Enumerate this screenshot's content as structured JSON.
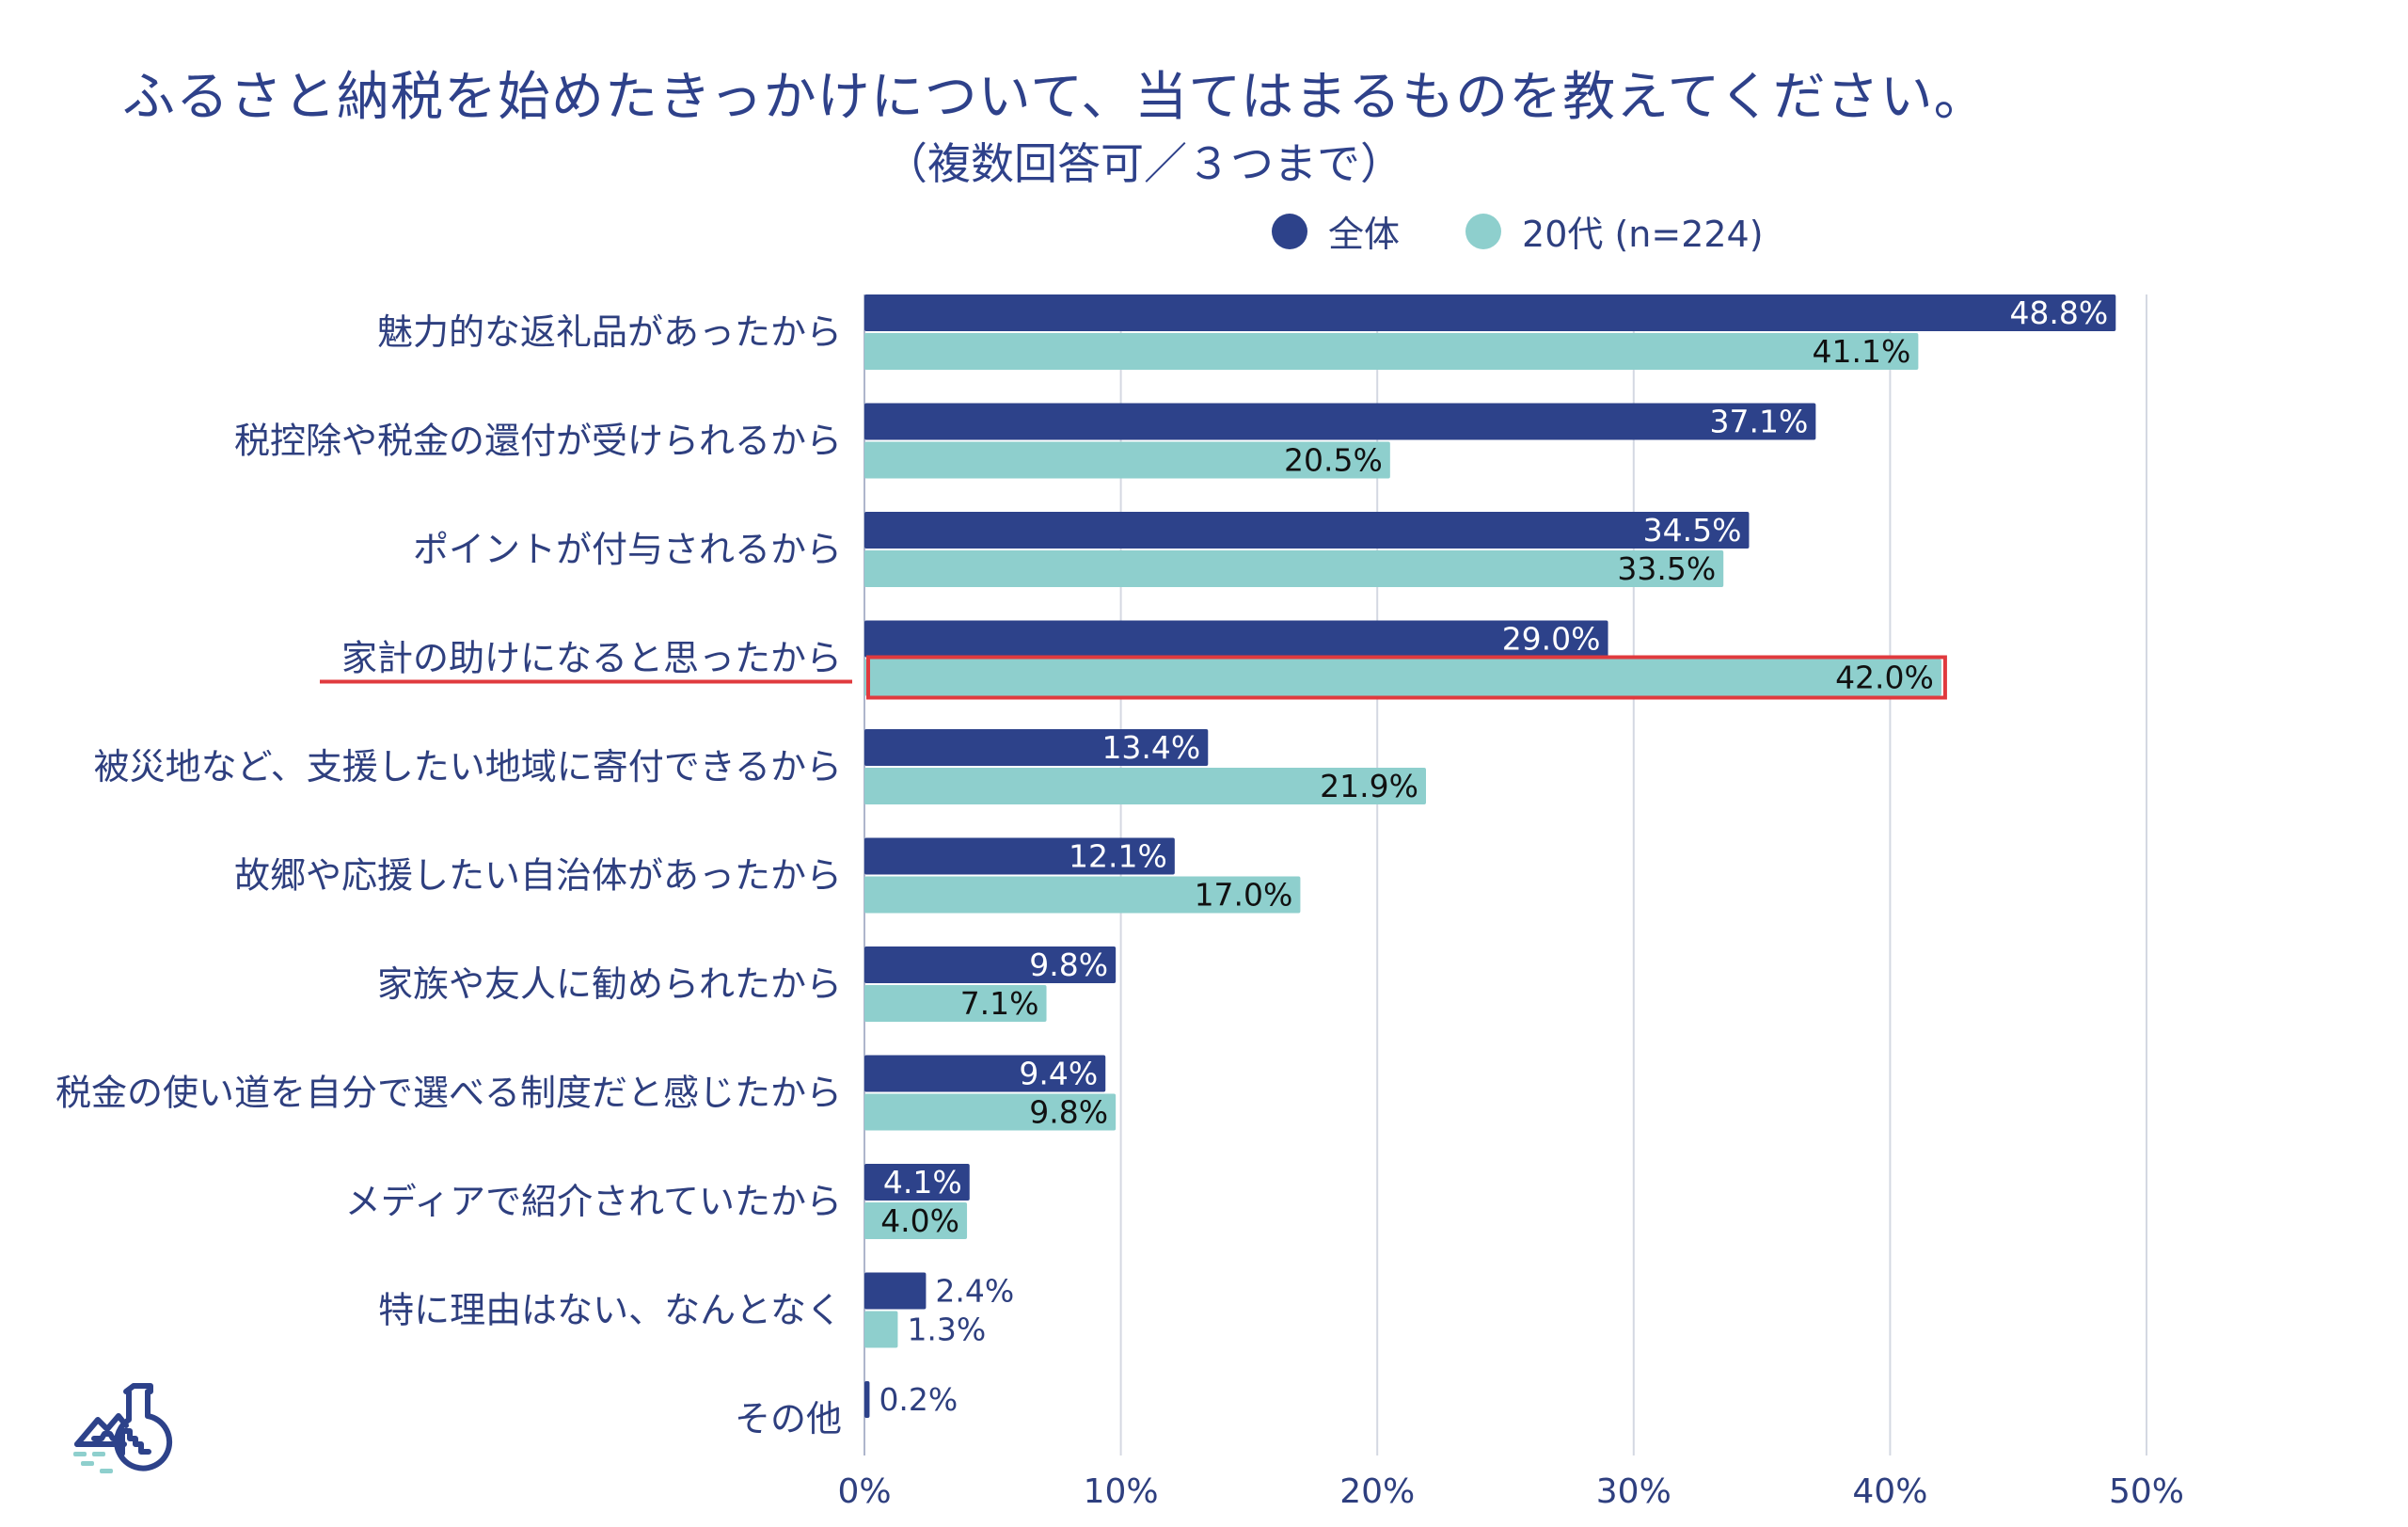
{
  "title": "ふるさと納税を始めたきっかけについて、当てはまるものを教えてください。",
  "subtitle": "（複数回答可／３つまで）",
  "legend": [
    {
      "label": "全体",
      "color": "#2d428a"
    },
    {
      "label": "20代 (n=224)",
      "color": "#8ecfcd"
    }
  ],
  "colors": {
    "highlight": "#e03a3e",
    "grid": "#d4d8e2",
    "axis_text": "#2e3f7f",
    "dark_value_text": "#ffffff",
    "light_value_text": "#111111"
  },
  "highlight_index": 3,
  "chart_data": {
    "type": "bar",
    "orientation": "horizontal",
    "title": "ふるさと納税を始めたきっかけについて、当てはまるものを教えてください。",
    "subtitle": "（複数回答可／３つまで）",
    "categories": [
      "魅力的な返礼品があったから",
      "税控除や税金の還付が受けられるから",
      "ポイントが付与されるから",
      "家計の助けになると思ったから",
      "被災地など、支援したい地域に寄付できるから",
      "故郷や応援したい自治体があったから",
      "家族や友人に勧められたから",
      "税金の使い道を自分で選べる制度だと感じたから",
      "メディアで紹介されていたから",
      "特に理由はない、なんとなく",
      "その他"
    ],
    "series": [
      {
        "name": "全体",
        "color": "#2d428a",
        "values": [
          48.8,
          37.1,
          34.5,
          29.0,
          13.4,
          12.1,
          9.8,
          9.4,
          4.1,
          2.4,
          0.2
        ],
        "labels": [
          "48.8%",
          "37.1%",
          "34.5%",
          "29.0%",
          "13.4%",
          "12.1%",
          "9.8%",
          "9.4%",
          "4.1%",
          "2.4%",
          "0.2%"
        ]
      },
      {
        "name": "20代 (n=224)",
        "color": "#8ecfcd",
        "values": [
          41.1,
          20.5,
          33.5,
          42.0,
          21.9,
          17.0,
          7.1,
          9.8,
          4.0,
          1.3,
          null
        ],
        "labels": [
          "41.1%",
          "20.5%",
          "33.5%",
          "42.0%",
          "21.9%",
          "17.0%",
          "7.1%",
          "9.8%",
          "4.0%",
          "1.3%",
          ""
        ]
      }
    ],
    "xlim": [
      0,
      50
    ],
    "xticks": [
      0,
      10,
      20,
      30,
      40,
      50
    ],
    "xtick_labels": [
      "0%",
      "10%",
      "20%",
      "30%",
      "40%",
      "50%"
    ],
    "xlabel": "",
    "ylabel": "",
    "grid": true,
    "legend_position": "top-right",
    "annotation": "家計の助けになると思ったから (20代 42.0%) highlighted in red"
  },
  "logo": {
    "icon": "flask-landscape-icon"
  }
}
